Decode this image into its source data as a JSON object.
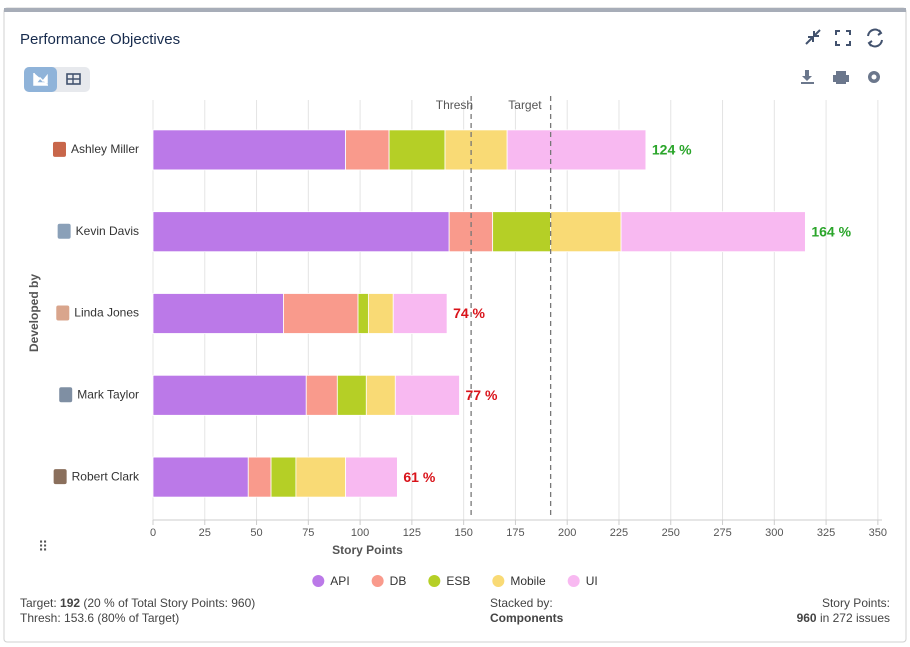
{
  "header": {
    "title": "Performance Objectives"
  },
  "chart_data": {
    "type": "stacked_hbar",
    "categories": [
      "Ashley Miller",
      "Kevin Davis",
      "Linda Jones",
      "Mark Taylor",
      "Robert Clark"
    ],
    "series": [
      {
        "name": "API",
        "color": "#bb79e8",
        "values": [
          93,
          143,
          63,
          74,
          46
        ]
      },
      {
        "name": "DB",
        "color": "#f99a8c",
        "values": [
          21,
          21,
          36,
          15,
          11
        ]
      },
      {
        "name": "ESB",
        "color": "#b5cf26",
        "values": [
          27,
          28,
          5,
          14,
          12
        ]
      },
      {
        "name": "Mobile",
        "color": "#f9da75",
        "values": [
          30,
          34,
          12,
          14,
          24
        ]
      },
      {
        "name": "UI",
        "color": "#f8b9f1",
        "values": [
          67,
          89,
          26,
          31,
          25
        ]
      }
    ],
    "pct_values": [
      124,
      164,
      74,
      77,
      61
    ],
    "pct_labels": [
      "124 %",
      "164 %",
      "74 %",
      "77 %",
      "61 %"
    ],
    "pct_colors": [
      "#2aa52a",
      "#2aa52a",
      "#d9131a",
      "#d9131a",
      "#d9131a"
    ],
    "xlim": [
      0,
      352
    ],
    "xticks": [
      0,
      25,
      50,
      75,
      100,
      125,
      150,
      175,
      200,
      225,
      250,
      275,
      300,
      325,
      350
    ],
    "xlabel": "Story Points",
    "ylabel": "Developed by",
    "grid": true,
    "reference_lines": [
      {
        "name": "Thresh",
        "value": 153.6
      },
      {
        "name": "Target",
        "value": 192
      }
    ]
  },
  "footer": {
    "target_label": "Target:",
    "target_value": "192",
    "target_note": "(20 % of Total Story Points: 960)",
    "thresh_label": "Thresh:",
    "thresh_value": "153.6 (80% of Target)",
    "stacked_label": "Stacked by:",
    "stacked_value": "Components",
    "points_label": "Story Points:",
    "points_value": "960",
    "points_note": "in 272 issues"
  }
}
